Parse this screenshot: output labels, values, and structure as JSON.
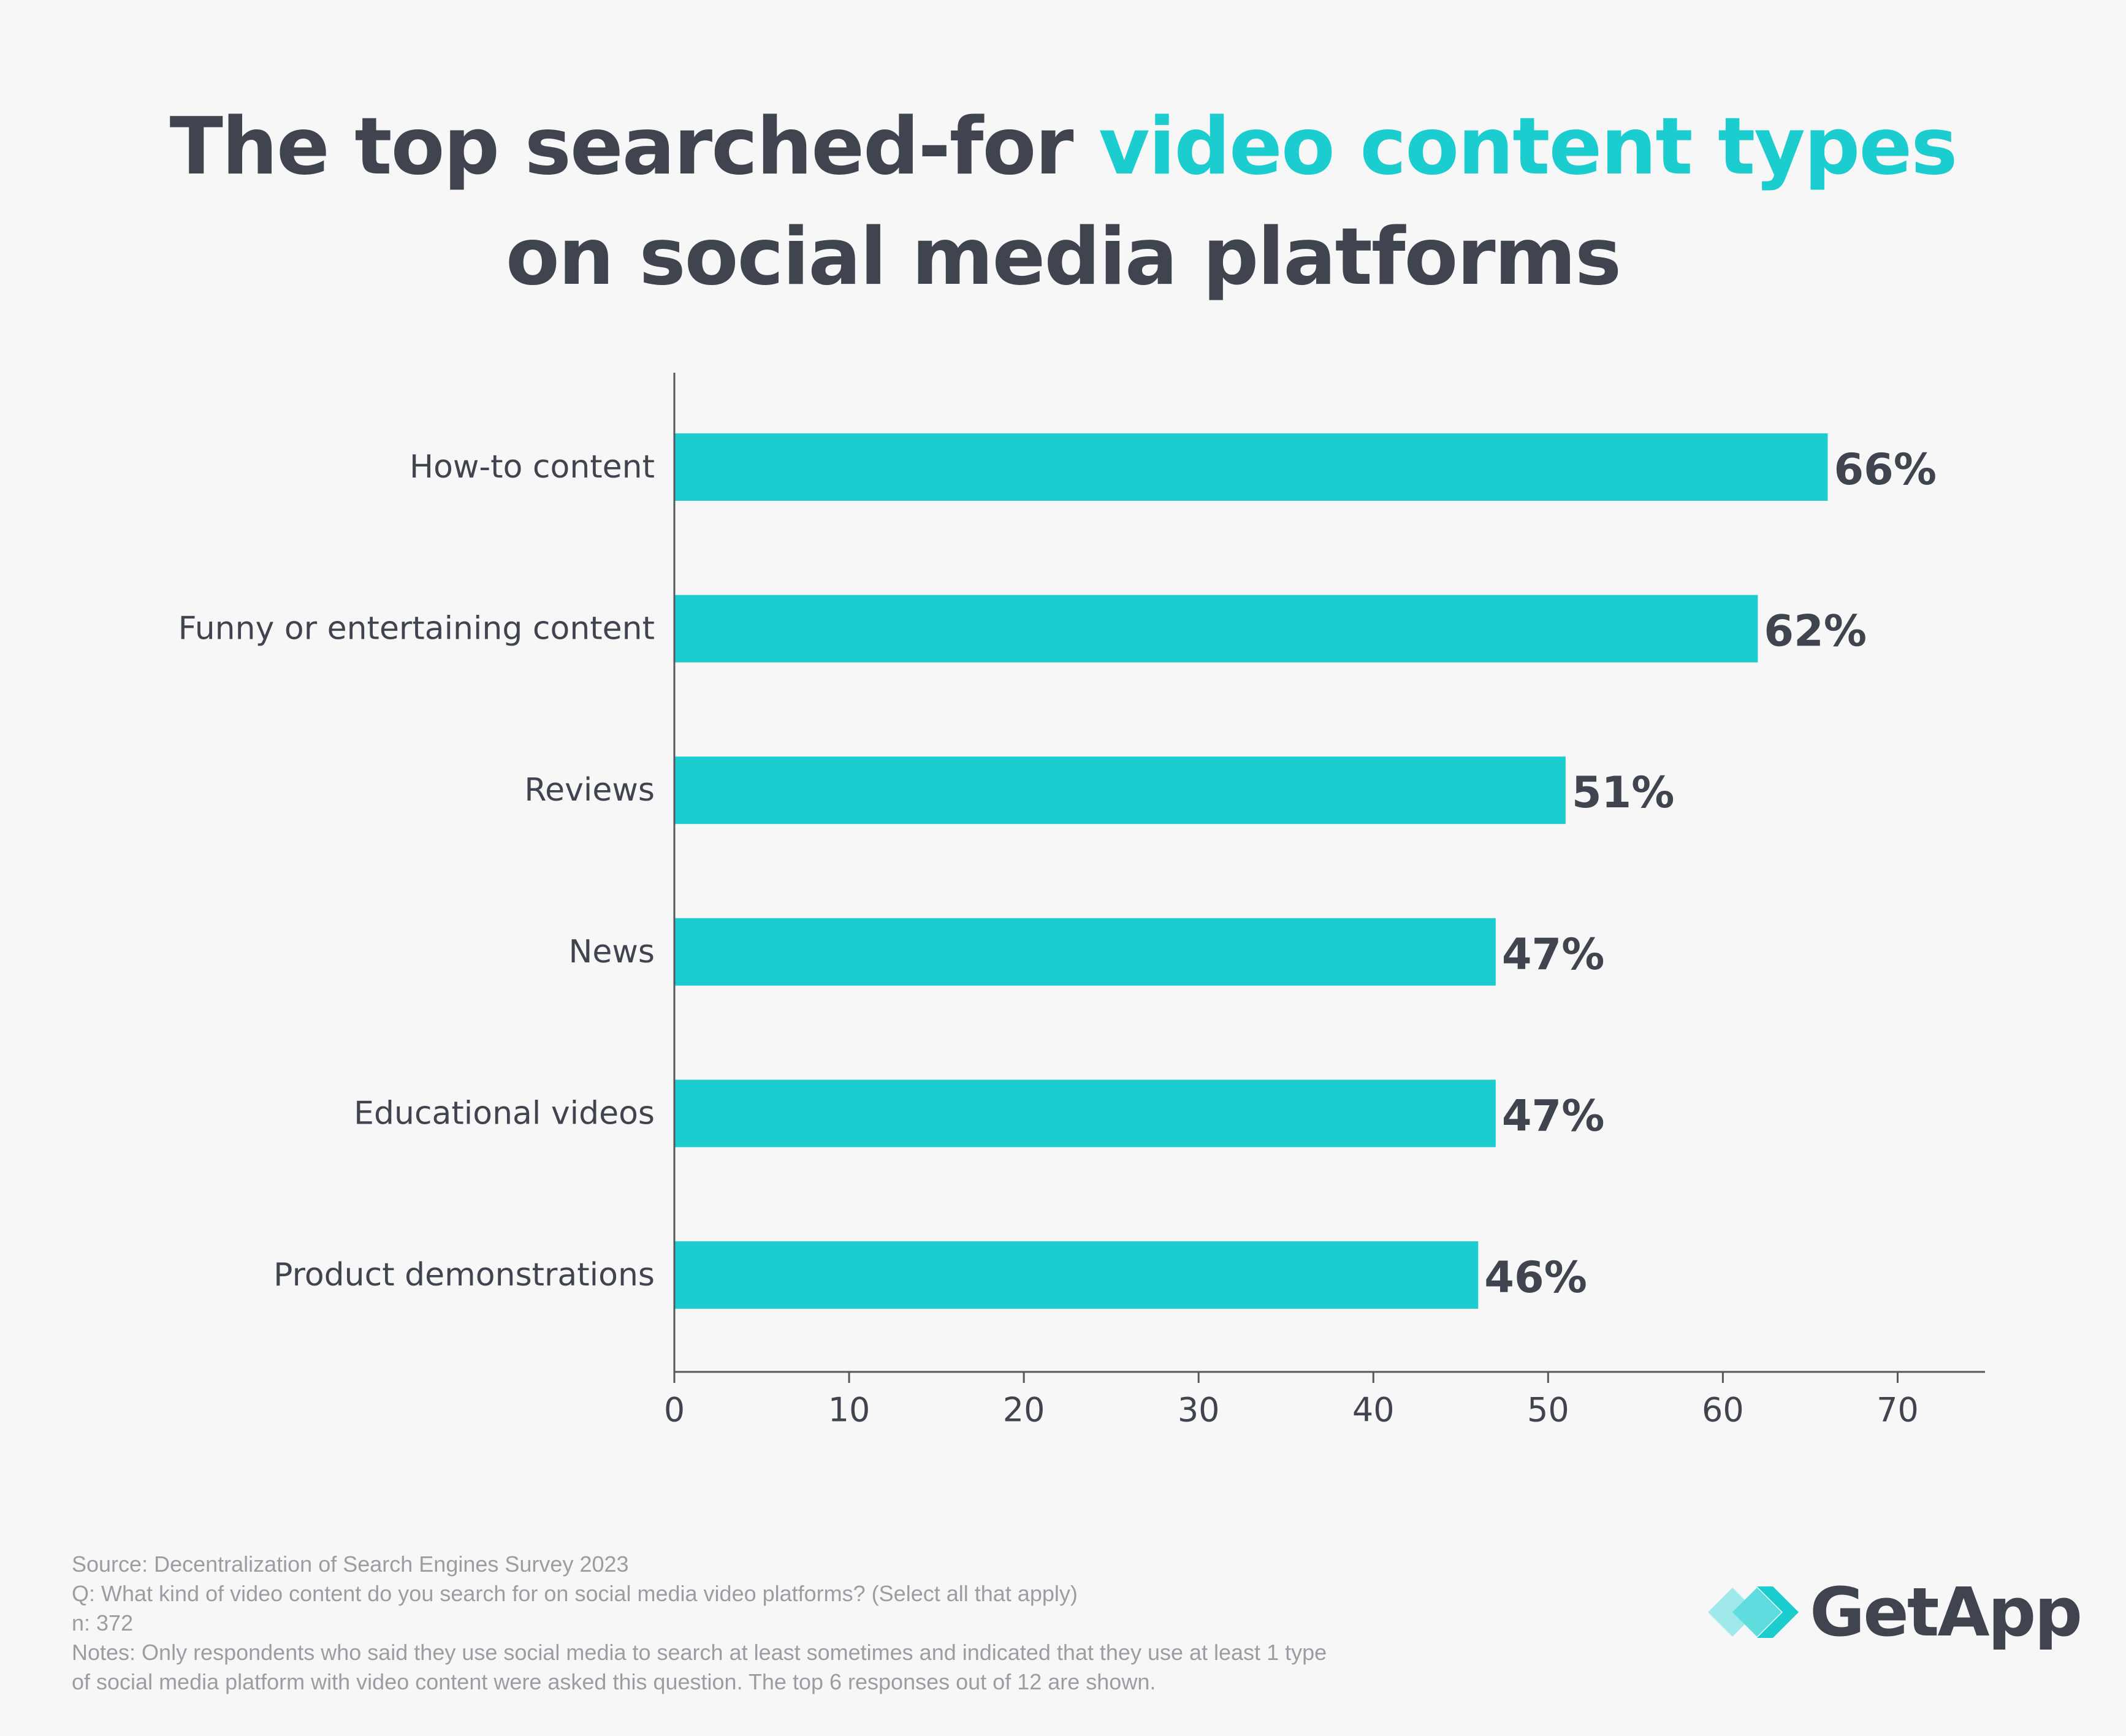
{
  "title": {
    "part1": "The top searched-for ",
    "highlight": "video content types",
    "line2": "on social media platforms"
  },
  "chart_data": {
    "type": "bar",
    "orientation": "horizontal",
    "categories": [
      "How-to content",
      "Funny or entertaining content",
      "Reviews",
      "News",
      "Educational videos",
      "Product demonstrations"
    ],
    "values": [
      66,
      62,
      51,
      47,
      47,
      46
    ],
    "data_labels": [
      "66%",
      "62%",
      "51%",
      "47%",
      "47%",
      "46%"
    ],
    "xlim": [
      0,
      75
    ],
    "xticks": [
      0,
      10,
      20,
      30,
      40,
      50,
      60,
      70
    ],
    "grid": false,
    "bar_color": "#1ccdd0"
  },
  "footer": {
    "source": "Source: Decentralization of Search Engines Survey 2023",
    "question": "Q: What kind of video content do you search for on social media video platforms? (Select all that apply)",
    "n": "n: 372",
    "notes_line1": "Notes: Only respondents who said they use social media to search at least sometimes and indicated that they use at least 1 type",
    "notes_line2": "of social media platform with video content were asked this question. The top 6 responses out of 12 are shown."
  },
  "logo": {
    "text": "GetApp",
    "icon": "getapp-chevron-logo-icon"
  },
  "colors": {
    "accent": "#1ccdd0",
    "text_dark": "#3f444e",
    "footer_text": "#9a9da2",
    "background": "#f7f7f7"
  }
}
